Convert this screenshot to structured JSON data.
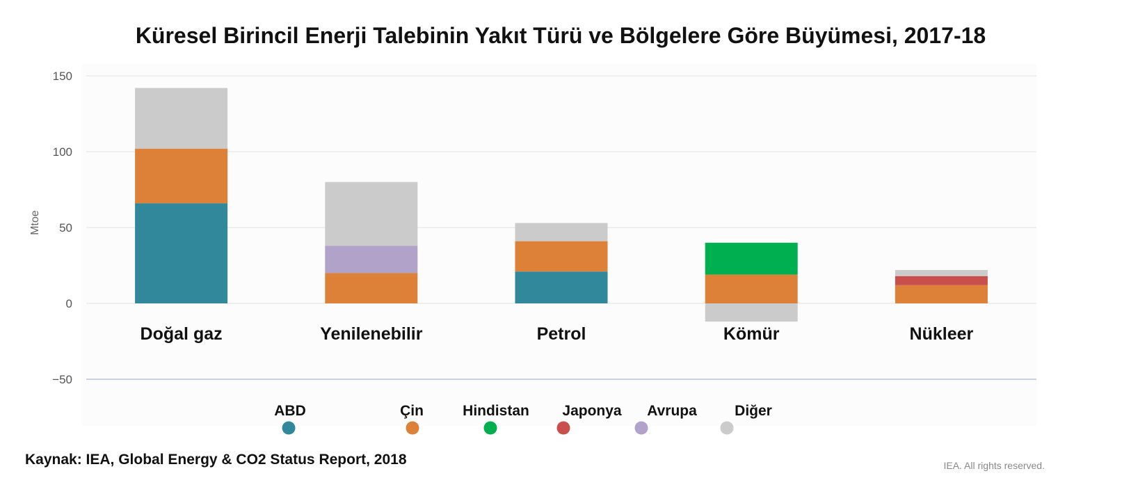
{
  "chart_data": {
    "type": "bar",
    "stacked": true,
    "title": "Küresel Birincil Enerji Talebinin Yakıt Türü ve Bölgelere Göre Büyümesi, 2017-18",
    "ylabel": "Mtoe",
    "xlabel": "",
    "ylim": [
      -50,
      150
    ],
    "yticks": [
      150,
      100,
      50,
      0,
      -50
    ],
    "ytick_labels": [
      "150",
      "100",
      "50",
      "0",
      "−50"
    ],
    "grid": true,
    "legend_position": "bottom",
    "categories": [
      "Doğal gaz",
      "Yenilenebilir",
      "Petrol",
      "Kömür",
      "Nükleer"
    ],
    "series": [
      {
        "name": "ABD",
        "color": "#31889b",
        "values": [
          66,
          0,
          21,
          0,
          0
        ]
      },
      {
        "name": "Çin",
        "color": "#dc8137",
        "values": [
          36,
          20,
          20,
          19,
          12
        ]
      },
      {
        "name": "Hindistan",
        "color": "#00b050",
        "values": [
          0,
          0,
          0,
          21,
          0
        ]
      },
      {
        "name": "Japonya",
        "color": "#c94f4c",
        "values": [
          0,
          0,
          0,
          0,
          6
        ]
      },
      {
        "name": "Avrupa",
        "color": "#b1a2c9",
        "values": [
          0,
          18,
          0,
          0,
          0
        ]
      },
      {
        "name": "Diğer",
        "color": "#cbcbcb",
        "values": [
          40,
          42,
          12,
          -12,
          4
        ]
      }
    ]
  },
  "footer": {
    "source": "Kaynak: IEA, Global Energy & CO2 Status Report, 2018",
    "rights": "IEA. All rights reserved."
  }
}
